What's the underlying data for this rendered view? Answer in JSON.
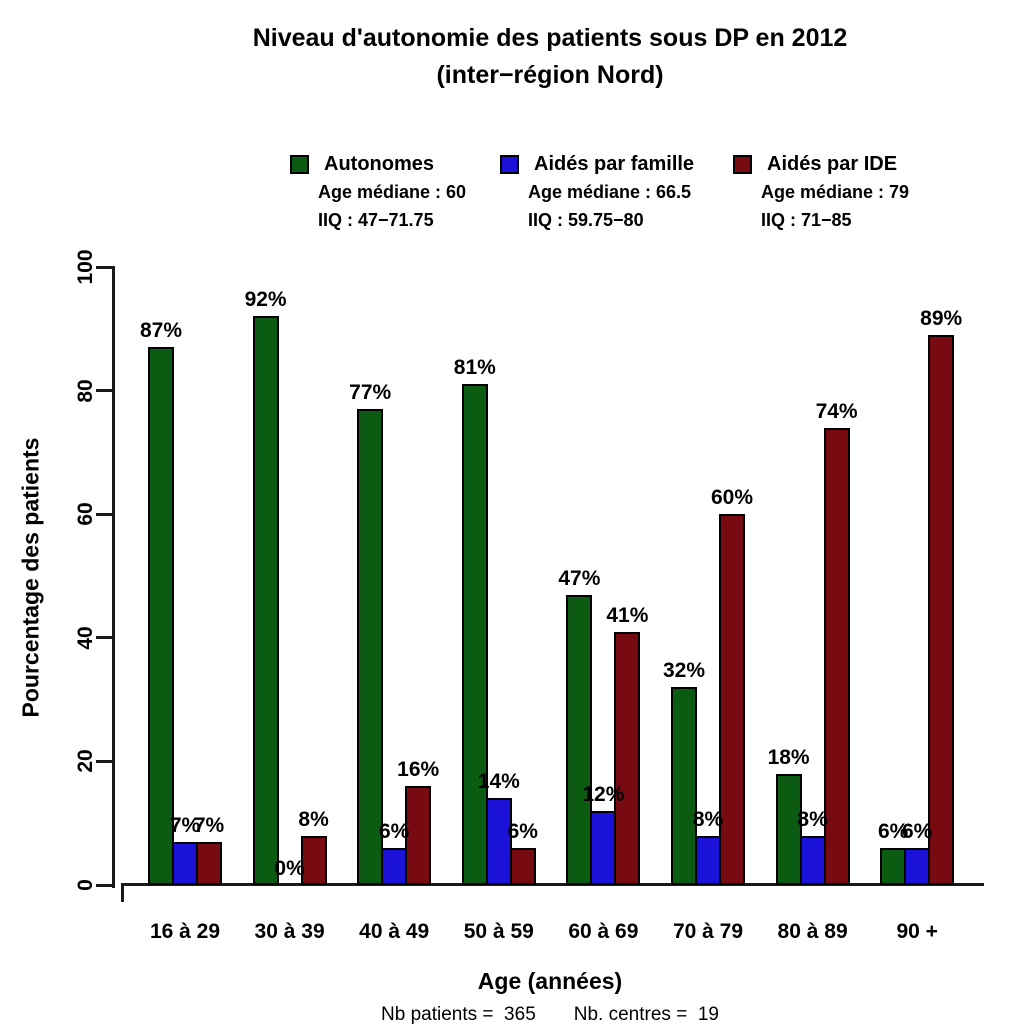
{
  "chart_data": {
    "type": "bar",
    "title": "Niveau d'autonomie des patients sous DP en 2012",
    "subtitle": "(inter−région Nord)",
    "xlabel": "Age (années)",
    "ylabel": "Pourcentage des patients",
    "ylim": [
      0,
      100
    ],
    "yticks": [
      0,
      20,
      40,
      60,
      80,
      100
    ],
    "grid": false,
    "legend_position": "top",
    "categories": [
      "16 à 29",
      "30 à 39",
      "40 à 49",
      "50 à 59",
      "60 à 69",
      "70 à 79",
      "80 à 89",
      "90 +"
    ],
    "series": [
      {
        "name": "Autonomes",
        "color": "#0B5B13",
        "age_mediane": "Age médiane : 60",
        "iiq": "IIQ : 47−71.75",
        "values": [
          87,
          92,
          77,
          81,
          47,
          32,
          18,
          6
        ]
      },
      {
        "name": "Aidés par famille",
        "color": "#1B12D9",
        "age_mediane": "Age médiane : 66.5",
        "iiq": "IIQ : 59.75−80",
        "values": [
          7,
          0,
          6,
          14,
          12,
          8,
          8,
          6
        ]
      },
      {
        "name": "Aidés par IDE",
        "color": "#780B12",
        "age_mediane": "Age médiane : 79",
        "iiq": "IIQ : 71−85",
        "values": [
          7,
          8,
          16,
          6,
          41,
          60,
          74,
          89
        ]
      }
    ],
    "value_label_suffix": "%",
    "annotations": [
      "Nb patients =  365",
      "Nb. centres =  19"
    ]
  }
}
